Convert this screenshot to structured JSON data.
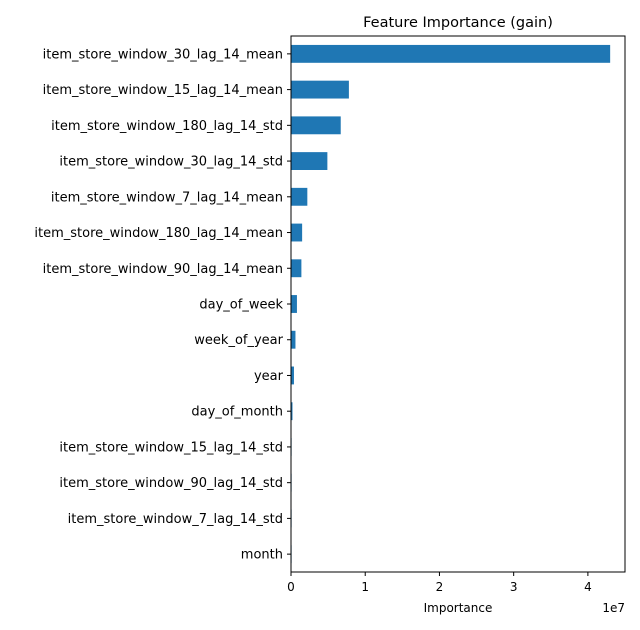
{
  "chart_data": {
    "type": "bar",
    "orientation": "horizontal",
    "title": "Feature Importance (gain)",
    "xlabel": "Importance",
    "ylabel": "",
    "x_scale_label": "1e7",
    "xlim": [
      0,
      4.5
    ],
    "x_ticks": [
      0,
      1,
      2,
      3,
      4
    ],
    "x_tick_labels": [
      "0",
      "1",
      "2",
      "3",
      "4"
    ],
    "bar_color": "#1f77b4",
    "grid": false,
    "legend": "none",
    "categories": [
      "item_store_window_30_lag_14_mean",
      "item_store_window_15_lag_14_mean",
      "item_store_window_180_lag_14_std",
      "item_store_window_30_lag_14_std",
      "item_store_window_7_lag_14_mean",
      "item_store_window_180_lag_14_mean",
      "item_store_window_90_lag_14_mean",
      "day_of_week",
      "week_of_year",
      "year",
      "day_of_month",
      "item_store_window_15_lag_14_std",
      "item_store_window_90_lag_14_std",
      "item_store_window_7_lag_14_std",
      "month"
    ],
    "values": [
      4.3,
      0.78,
      0.67,
      0.49,
      0.22,
      0.15,
      0.14,
      0.08,
      0.06,
      0.04,
      0.02,
      0.005,
      0.004,
      0.003,
      0.002
    ]
  }
}
